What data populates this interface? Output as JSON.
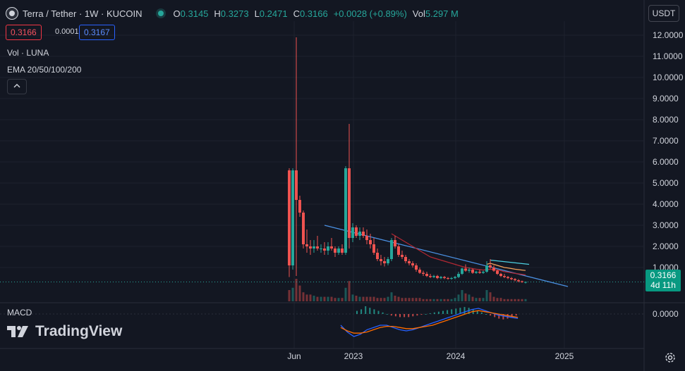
{
  "header": {
    "symbol": "Terra / Tether · 1W · KUCOIN",
    "open_label": "O",
    "open": "0.3145",
    "high_label": "H",
    "high": "0.3273",
    "low_label": "L",
    "low": "0.2471",
    "close_label": "C",
    "close": "0.3166",
    "change": "+0.0028 (+0.89%)",
    "vol_label": "Vol",
    "vol": "5.297 M"
  },
  "sell_price": "0.3166",
  "spread": "0.0001",
  "buy_price": "0.3167",
  "indicators": {
    "volume": "Vol · LUNA",
    "ema": "EMA 20/50/100/200",
    "collapse_icon": "chevron-up-icon"
  },
  "currency": "USDT",
  "current_price": {
    "price": "0.3166",
    "countdown": "4d 11h"
  },
  "macd_label": "MACD",
  "brand": "TradingView",
  "colors": {
    "up": "#26a69a",
    "down": "#ef5350",
    "trendline": "#4a90e2",
    "ema_red": "#b22833",
    "ema_orange": "#f7a35c",
    "macd_line": "#2962ff",
    "signal_line": "#ff6d00",
    "cyan_line": "#4dd0e1"
  },
  "chart_data": {
    "type": "candlestick",
    "title": "Terra / Tether · 1W · KUCOIN",
    "y_ticks": [
      "12.0000",
      "11.0000",
      "10.0000",
      "9.0000",
      "8.0000",
      "7.0000",
      "6.0000",
      "5.0000",
      "4.0000",
      "3.0000",
      "2.0000",
      "1.0000"
    ],
    "ylim": [
      0,
      12.3
    ],
    "x_ticks": [
      "Jun",
      "2023",
      "2024",
      "2025"
    ],
    "macd_ticks": [
      "0.0000"
    ],
    "candles": [
      {
        "o": 5.6,
        "h": 5.7,
        "l": 0.55,
        "c": 1.1
      },
      {
        "o": 1.1,
        "h": 5.7,
        "l": 0.9,
        "c": 5.6
      },
      {
        "o": 5.6,
        "h": 11.9,
        "l": 0.6,
        "c": 4.2
      },
      {
        "o": 4.2,
        "h": 4.4,
        "l": 3.4,
        "c": 3.6
      },
      {
        "o": 3.6,
        "h": 3.7,
        "l": 1.9,
        "c": 2.1
      },
      {
        "o": 2.1,
        "h": 2.8,
        "l": 1.7,
        "c": 2.0
      },
      {
        "o": 2.0,
        "h": 2.3,
        "l": 1.6,
        "c": 1.9
      },
      {
        "o": 1.9,
        "h": 2.3,
        "l": 1.7,
        "c": 2.0
      },
      {
        "o": 2.0,
        "h": 2.5,
        "l": 1.8,
        "c": 1.9
      },
      {
        "o": 1.9,
        "h": 2.1,
        "l": 1.7,
        "c": 1.9
      },
      {
        "o": 1.9,
        "h": 2.2,
        "l": 1.6,
        "c": 1.8
      },
      {
        "o": 1.8,
        "h": 2.2,
        "l": 1.6,
        "c": 2.0
      },
      {
        "o": 2.0,
        "h": 2.4,
        "l": 1.8,
        "c": 1.9
      },
      {
        "o": 1.9,
        "h": 2.0,
        "l": 1.5,
        "c": 1.7
      },
      {
        "o": 1.7,
        "h": 2.0,
        "l": 1.6,
        "c": 1.9
      },
      {
        "o": 1.9,
        "h": 2.1,
        "l": 1.6,
        "c": 1.7
      },
      {
        "o": 1.7,
        "h": 5.8,
        "l": 1.6,
        "c": 5.7
      },
      {
        "o": 5.7,
        "h": 7.8,
        "l": 1.9,
        "c": 2.4
      },
      {
        "o": 2.4,
        "h": 3.1,
        "l": 2.2,
        "c": 2.9
      },
      {
        "o": 2.9,
        "h": 3.0,
        "l": 2.4,
        "c": 2.5
      },
      {
        "o": 2.5,
        "h": 2.9,
        "l": 2.3,
        "c": 2.7
      },
      {
        "o": 2.7,
        "h": 2.9,
        "l": 2.4,
        "c": 2.5
      },
      {
        "o": 2.5,
        "h": 2.8,
        "l": 2.1,
        "c": 2.3
      },
      {
        "o": 2.3,
        "h": 2.6,
        "l": 1.9,
        "c": 2.1
      },
      {
        "o": 2.1,
        "h": 2.4,
        "l": 1.6,
        "c": 1.7
      },
      {
        "o": 1.7,
        "h": 1.9,
        "l": 1.3,
        "c": 1.4
      },
      {
        "o": 1.4,
        "h": 1.6,
        "l": 1.1,
        "c": 1.3
      },
      {
        "o": 1.3,
        "h": 1.5,
        "l": 1.05,
        "c": 1.2
      },
      {
        "o": 1.2,
        "h": 1.5,
        "l": 1.1,
        "c": 1.4
      },
      {
        "o": 1.4,
        "h": 2.4,
        "l": 1.3,
        "c": 2.3
      },
      {
        "o": 2.3,
        "h": 2.5,
        "l": 1.9,
        "c": 2.0
      },
      {
        "o": 2.0,
        "h": 2.1,
        "l": 1.5,
        "c": 1.6
      },
      {
        "o": 1.6,
        "h": 1.8,
        "l": 1.4,
        "c": 1.5
      },
      {
        "o": 1.5,
        "h": 1.6,
        "l": 1.2,
        "c": 1.3
      },
      {
        "o": 1.3,
        "h": 1.4,
        "l": 1.1,
        "c": 1.2
      },
      {
        "o": 1.2,
        "h": 1.3,
        "l": 1.0,
        "c": 1.1
      },
      {
        "o": 1.1,
        "h": 1.2,
        "l": 0.8,
        "c": 0.9
      },
      {
        "o": 0.9,
        "h": 1.0,
        "l": 0.7,
        "c": 0.75
      },
      {
        "o": 0.75,
        "h": 0.85,
        "l": 0.6,
        "c": 0.7
      },
      {
        "o": 0.7,
        "h": 0.8,
        "l": 0.55,
        "c": 0.6
      },
      {
        "o": 0.6,
        "h": 0.7,
        "l": 0.5,
        "c": 0.55
      },
      {
        "o": 0.55,
        "h": 0.65,
        "l": 0.5,
        "c": 0.6
      },
      {
        "o": 0.6,
        "h": 0.65,
        "l": 0.45,
        "c": 0.5
      },
      {
        "o": 0.5,
        "h": 0.6,
        "l": 0.45,
        "c": 0.55
      },
      {
        "o": 0.55,
        "h": 0.6,
        "l": 0.45,
        "c": 0.5
      },
      {
        "o": 0.5,
        "h": 0.55,
        "l": 0.42,
        "c": 0.48
      },
      {
        "o": 0.48,
        "h": 0.55,
        "l": 0.42,
        "c": 0.5
      },
      {
        "o": 0.5,
        "h": 0.6,
        "l": 0.45,
        "c": 0.55
      },
      {
        "o": 0.55,
        "h": 0.8,
        "l": 0.5,
        "c": 0.7
      },
      {
        "o": 0.7,
        "h": 1.0,
        "l": 0.65,
        "c": 0.95
      },
      {
        "o": 0.95,
        "h": 1.15,
        "l": 0.8,
        "c": 0.85
      },
      {
        "o": 0.85,
        "h": 1.0,
        "l": 0.75,
        "c": 0.9
      },
      {
        "o": 0.9,
        "h": 0.95,
        "l": 0.7,
        "c": 0.75
      },
      {
        "o": 0.75,
        "h": 0.85,
        "l": 0.7,
        "c": 0.8
      },
      {
        "o": 0.8,
        "h": 0.9,
        "l": 0.7,
        "c": 0.75
      },
      {
        "o": 0.75,
        "h": 0.85,
        "l": 0.7,
        "c": 0.8
      },
      {
        "o": 0.8,
        "h": 1.3,
        "l": 0.75,
        "c": 1.1
      },
      {
        "o": 1.1,
        "h": 1.4,
        "l": 0.95,
        "c": 1.0
      },
      {
        "o": 1.0,
        "h": 1.1,
        "l": 0.8,
        "c": 0.85
      },
      {
        "o": 0.85,
        "h": 0.9,
        "l": 0.65,
        "c": 0.7
      },
      {
        "o": 0.7,
        "h": 0.75,
        "l": 0.55,
        "c": 0.6
      },
      {
        "o": 0.6,
        "h": 0.7,
        "l": 0.5,
        "c": 0.55
      },
      {
        "o": 0.55,
        "h": 0.6,
        "l": 0.45,
        "c": 0.5
      },
      {
        "o": 0.5,
        "h": 0.55,
        "l": 0.4,
        "c": 0.45
      },
      {
        "o": 0.45,
        "h": 0.5,
        "l": 0.35,
        "c": 0.4
      },
      {
        "o": 0.4,
        "h": 0.45,
        "l": 0.3,
        "c": 0.35
      },
      {
        "o": 0.35,
        "h": 0.38,
        "l": 0.28,
        "c": 0.31
      },
      {
        "o": 0.3145,
        "h": 0.3273,
        "l": 0.2471,
        "c": 0.3166
      }
    ],
    "volume_relative": [
      0.5,
      0.6,
      1.0,
      0.7,
      0.4,
      0.3,
      0.3,
      0.25,
      0.2,
      0.2,
      0.2,
      0.2,
      0.2,
      0.15,
      0.15,
      0.15,
      0.6,
      0.9,
      0.3,
      0.25,
      0.2,
      0.2,
      0.2,
      0.2,
      0.2,
      0.15,
      0.15,
      0.15,
      0.2,
      0.4,
      0.25,
      0.2,
      0.15,
      0.15,
      0.15,
      0.15,
      0.15,
      0.15,
      0.1,
      0.1,
      0.1,
      0.1,
      0.1,
      0.1,
      0.1,
      0.1,
      0.1,
      0.15,
      0.3,
      0.5,
      0.35,
      0.3,
      0.2,
      0.15,
      0.15,
      0.15,
      0.5,
      0.4,
      0.2,
      0.15,
      0.15,
      0.1,
      0.1,
      0.1,
      0.1,
      0.1,
      0.1,
      0.1
    ],
    "trendline": {
      "from": [
        0,
        3.0
      ],
      "to": [
        77,
        0.1
      ]
    },
    "cyan_segment": {
      "from": [
        57,
        1.35
      ],
      "to": [
        68,
        1.15
      ]
    },
    "ema_red": [
      null,
      null,
      null,
      null,
      null,
      null,
      null,
      null,
      null,
      null,
      null,
      null,
      null,
      null,
      null,
      null,
      null,
      null,
      null,
      null,
      null,
      null,
      null,
      null,
      null,
      null,
      null,
      null,
      null,
      2.6,
      2.5,
      2.4,
      2.3,
      2.2,
      2.1,
      2.0,
      1.9,
      1.8,
      1.7,
      1.6,
      1.5,
      1.45,
      1.4,
      1.35,
      1.3,
      1.25,
      1.2,
      1.15,
      1.1,
      1.05,
      1.0,
      0.98,
      0.95,
      0.92,
      0.9,
      0.88,
      0.9,
      0.92,
      0.9,
      0.88,
      0.85,
      0.8,
      0.78,
      0.75,
      0.72,
      0.7,
      0.68,
      0.65
    ],
    "ema_orange": [
      null,
      null,
      null,
      null,
      null,
      null,
      null,
      null,
      null,
      null,
      null,
      null,
      null,
      null,
      null,
      null,
      null,
      null,
      null,
      null,
      null,
      null,
      null,
      null,
      null,
      null,
      null,
      null,
      null,
      null,
      null,
      null,
      null,
      null,
      null,
      null,
      null,
      null,
      null,
      null,
      null,
      null,
      null,
      null,
      null,
      null,
      null,
      null,
      null,
      null,
      null,
      null,
      null,
      null,
      null,
      null,
      1.15,
      1.2,
      1.15,
      1.1,
      1.05,
      1.0,
      0.98,
      0.95,
      0.92,
      0.9,
      0.88,
      0.86
    ],
    "macd_hist": [
      0.2,
      0.3,
      0.5,
      0.4,
      0.3,
      0.2,
      0.1,
      0.0,
      -0.1,
      -0.15,
      -0.2,
      -0.2,
      -0.2,
      -0.15,
      -0.1,
      -0.05,
      0.0,
      0.05,
      0.1,
      0.15,
      0.2,
      0.25,
      0.3,
      0.35,
      0.4,
      0.45,
      0.4,
      0.3,
      0.2,
      0.1,
      0.0,
      -0.1,
      -0.2,
      -0.3,
      -0.35,
      -0.3,
      -0.2,
      -0.1
    ],
    "macd_line": [
      -0.5,
      -0.8,
      -1.0,
      -0.9,
      -0.7,
      -0.6,
      -0.5,
      -0.5,
      -0.6,
      -0.7,
      -0.75,
      -0.7,
      -0.6,
      -0.5,
      -0.4,
      -0.3,
      -0.2,
      -0.1,
      0.0,
      0.1,
      0.2,
      0.25,
      0.15,
      0.05,
      -0.05,
      -0.1,
      -0.15,
      -0.2
    ],
    "signal_line": [
      -0.6,
      -0.75,
      -0.85,
      -0.85,
      -0.8,
      -0.7,
      -0.6,
      -0.55,
      -0.55,
      -0.6,
      -0.65,
      -0.65,
      -0.6,
      -0.55,
      -0.5,
      -0.4,
      -0.3,
      -0.2,
      -0.1,
      0.0,
      0.1,
      0.15,
      0.1,
      0.05,
      0.0,
      -0.05,
      -0.1,
      -0.15
    ]
  }
}
